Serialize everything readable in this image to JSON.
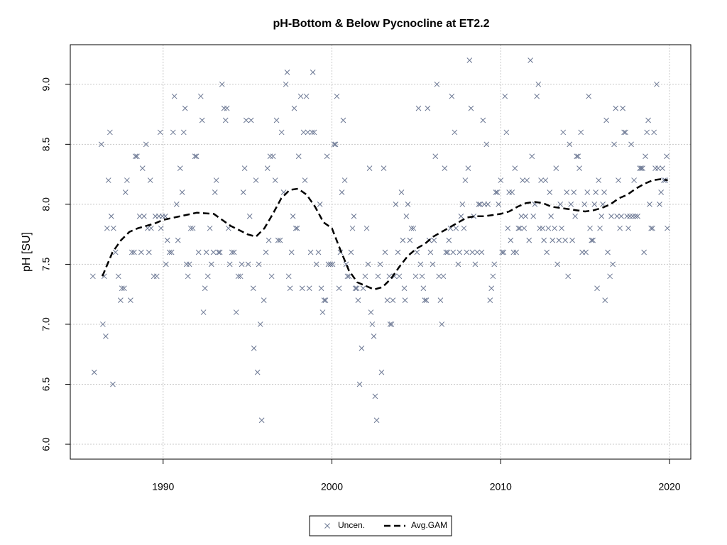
{
  "chart_data": {
    "type": "scatter",
    "title": "pH-Bottom & Below Pycnocline at ET2.2",
    "ylabel": "pH [SU]",
    "xlim": [
      1984.5,
      2021.26
    ],
    "ylim": [
      5.876,
      9.33
    ],
    "xticks": [
      1990,
      2000,
      2010,
      2020
    ],
    "yticks": [
      {
        "value": 6,
        "label": "6.0"
      },
      6.5,
      {
        "value": 7,
        "label": "7.0"
      },
      7.5,
      {
        "value": 8,
        "label": "8.0"
      },
      8.5,
      {
        "value": 9,
        "label": "9.0"
      }
    ],
    "grid": true,
    "legend": "bottom",
    "series": [
      {
        "name": "Uncen.",
        "type": "scatter",
        "color": "#6b7793",
        "x": [
          1985.84,
          1985.92,
          1986.34,
          1986.43,
          1986.51,
          1986.6,
          1986.68,
          1986.76,
          1986.85,
          1986.93,
          1987.02,
          1987.06,
          1987.18,
          1987.35,
          1987.48,
          1987.56,
          1987.69,
          1987.77,
          1987.86,
          1988.07,
          1988.15,
          1988.28,
          1988.36,
          1988.45,
          1988.61,
          1988.7,
          1988.78,
          1988.87,
          1988.99,
          1989.08,
          1989.16,
          1989.24,
          1989.29,
          1989.45,
          1989.54,
          1989.62,
          1989.75,
          1989.83,
          1989.87,
          1989.96,
          1990.13,
          1990.17,
          1990.25,
          1990.38,
          1990.5,
          1990.59,
          1990.67,
          1990.8,
          1990.88,
          1991.01,
          1991.13,
          1991.22,
          1991.3,
          1991.39,
          1991.47,
          1991.55,
          1991.64,
          1991.76,
          1991.89,
          1991.97,
          1992.1,
          1992.23,
          1992.31,
          1992.39,
          1992.48,
          1992.56,
          1992.65,
          1992.77,
          1992.86,
          1992.98,
          1993.07,
          1993.15,
          1993.28,
          1993.36,
          1993.49,
          1993.61,
          1993.7,
          1993.78,
          1993.87,
          1993.95,
          1994.08,
          1994.2,
          1994.33,
          1994.45,
          1994.58,
          1994.66,
          1994.75,
          1994.83,
          1994.92,
          1995.04,
          1995.13,
          1995.21,
          1995.34,
          1995.38,
          1995.5,
          1995.59,
          1995.67,
          1995.76,
          1995.84,
          1995.97,
          1996.09,
          1996.18,
          1996.26,
          1996.34,
          1996.43,
          1996.51,
          1996.64,
          1996.72,
          1996.81,
          1996.93,
          1997.02,
          1997.14,
          1997.27,
          1997.35,
          1997.44,
          1997.52,
          1997.61,
          1997.69,
          1997.77,
          1997.86,
          1997.94,
          1998.03,
          1998.15,
          1998.24,
          1998.32,
          1998.4,
          1998.49,
          1998.57,
          1998.66,
          1998.74,
          1998.82,
          1998.87,
          1998.95,
          1999.08,
          1999.2,
          1999.29,
          1999.37,
          1999.45,
          1999.54,
          1999.62,
          1999.71,
          1999.79,
          1999.92,
          2000.04,
          2000.13,
          2000.21,
          2000.29,
          2000.42,
          2000.5,
          2000.59,
          2000.67,
          2000.76,
          2000.84,
          2000.92,
          2001.01,
          2001.13,
          2001.22,
          2001.3,
          2001.39,
          2001.47,
          2001.55,
          2001.64,
          2001.76,
          2001.85,
          2001.97,
          2002.06,
          2002.14,
          2002.23,
          2002.31,
          2002.39,
          2002.48,
          2002.56,
          2002.65,
          2002.73,
          2002.86,
          2002.94,
          2003.07,
          2003.15,
          2003.28,
          2003.4,
          2003.45,
          2003.53,
          2003.61,
          2003.7,
          2003.78,
          2003.91,
          2003.99,
          2004.12,
          2004.2,
          2004.29,
          2004.33,
          2004.41,
          2004.5,
          2004.62,
          2004.71,
          2004.83,
          2004.96,
          2005.04,
          2005.13,
          2005.25,
          2005.34,
          2005.42,
          2005.5,
          2005.59,
          2005.67,
          2005.76,
          2005.84,
          2005.97,
          2006.05,
          2006.13,
          2006.22,
          2006.34,
          2006.43,
          2006.51,
          2006.6,
          2006.68,
          2006.76,
          2006.85,
          2006.93,
          2007.02,
          2007.1,
          2007.18,
          2007.27,
          2007.35,
          2007.48,
          2007.56,
          2007.65,
          2007.73,
          2007.82,
          2007.9,
          2007.98,
          2008.07,
          2008.15,
          2008.24,
          2008.32,
          2008.4,
          2008.49,
          2008.61,
          2008.7,
          2008.78,
          2008.87,
          2008.95,
          2009.03,
          2009.16,
          2009.24,
          2009.37,
          2009.45,
          2009.54,
          2009.62,
          2009.71,
          2009.79,
          2009.87,
          2010.0,
          2010.08,
          2010.17,
          2010.25,
          2010.34,
          2010.42,
          2010.5,
          2010.59,
          2010.67,
          2010.76,
          2010.84,
          2010.92,
          2011.05,
          2011.13,
          2011.22,
          2011.3,
          2011.39,
          2011.47,
          2011.55,
          2011.68,
          2011.76,
          2011.85,
          2011.93,
          2012.02,
          2012.14,
          2012.23,
          2012.31,
          2012.39,
          2012.48,
          2012.56,
          2012.65,
          2012.73,
          2012.82,
          2012.9,
          2012.98,
          2013.07,
          2013.19,
          2013.28,
          2013.36,
          2013.45,
          2013.53,
          2013.61,
          2013.7,
          2013.82,
          2013.91,
          2013.99,
          2014.08,
          2014.16,
          2014.24,
          2014.33,
          2014.41,
          2014.5,
          2014.58,
          2014.66,
          2014.75,
          2014.83,
          2014.96,
          2015.04,
          2015.13,
          2015.21,
          2015.29,
          2015.38,
          2015.46,
          2015.55,
          2015.63,
          2015.71,
          2015.8,
          2015.88,
          2015.97,
          2016.05,
          2016.13,
          2016.18,
          2016.26,
          2016.34,
          2016.47,
          2016.55,
          2016.64,
          2016.72,
          2016.81,
          2016.89,
          2016.97,
          2017.06,
          2017.14,
          2017.23,
          2017.31,
          2017.39,
          2017.48,
          2017.56,
          2017.65,
          2017.73,
          2017.82,
          2017.9,
          2017.98,
          2018.11,
          2018.24,
          2018.32,
          2018.4,
          2018.49,
          2018.57,
          2018.66,
          2018.74,
          2018.82,
          2018.91,
          2018.99,
          2019.08,
          2019.16,
          2019.24,
          2019.33,
          2019.41,
          2019.5,
          2019.58,
          2019.66,
          2019.75,
          2019.83,
          2019.87
        ],
        "values": [
          7.4,
          6.6,
          8.5,
          7.0,
          7.4,
          6.9,
          7.8,
          8.2,
          8.6,
          7.9,
          6.5,
          7.8,
          7.6,
          7.4,
          7.2,
          7.3,
          7.3,
          8.1,
          8.2,
          7.2,
          7.6,
          7.6,
          8.4,
          8.4,
          7.9,
          7.6,
          8.3,
          7.9,
          8.5,
          7.8,
          7.6,
          8.2,
          7.8,
          7.4,
          7.9,
          7.4,
          7.9,
          8.6,
          7.8,
          7.9,
          7.9,
          7.5,
          7.7,
          7.6,
          7.6,
          8.6,
          8.9,
          8.0,
          7.7,
          8.3,
          8.1,
          8.6,
          8.8,
          7.5,
          7.4,
          7.5,
          7.8,
          7.8,
          8.4,
          8.4,
          7.6,
          8.9,
          8.7,
          7.1,
          7.3,
          7.6,
          7.4,
          7.8,
          7.5,
          7.6,
          8.1,
          8.2,
          7.6,
          7.6,
          9.0,
          8.8,
          8.7,
          8.8,
          7.8,
          7.5,
          7.6,
          7.6,
          7.1,
          7.4,
          7.4,
          7.5,
          8.1,
          8.3,
          8.7,
          7.5,
          7.9,
          8.7,
          7.3,
          6.8,
          8.2,
          6.6,
          7.5,
          7.0,
          6.2,
          7.2,
          7.6,
          8.3,
          7.7,
          8.4,
          7.4,
          8.4,
          8.2,
          8.7,
          7.7,
          7.7,
          8.6,
          8.1,
          9.0,
          9.1,
          7.4,
          7.3,
          7.6,
          7.9,
          8.8,
          7.8,
          7.8,
          8.4,
          8.9,
          7.3,
          8.6,
          8.2,
          8.9,
          8.6,
          7.3,
          7.6,
          8.6,
          9.1,
          8.6,
          7.5,
          7.6,
          8.0,
          7.3,
          7.1,
          7.2,
          7.2,
          8.4,
          7.5,
          7.5,
          7.5,
          8.5,
          8.5,
          8.9,
          7.3,
          7.6,
          8.1,
          8.7,
          8.2,
          7.5,
          7.4,
          7.4,
          7.6,
          7.8,
          7.9,
          7.3,
          7.3,
          7.2,
          6.5,
          6.8,
          7.3,
          7.4,
          7.8,
          7.5,
          8.3,
          7.1,
          7.0,
          6.9,
          6.4,
          6.2,
          7.4,
          7.5,
          6.6,
          8.3,
          7.6,
          7.2,
          7.4,
          7.0,
          7.0,
          7.2,
          7.4,
          8.0,
          7.6,
          7.4,
          8.1,
          7.7,
          7.3,
          7.2,
          7.9,
          8.0,
          7.7,
          7.8,
          7.8,
          7.4,
          7.6,
          8.8,
          7.5,
          7.4,
          7.3,
          7.2,
          7.2,
          8.8,
          7.7,
          7.6,
          7.5,
          7.7,
          8.4,
          9.0,
          7.4,
          7.2,
          7.0,
          7.4,
          8.3,
          7.6,
          7.6,
          7.7,
          7.8,
          8.9,
          7.6,
          8.6,
          7.8,
          7.5,
          7.6,
          7.9,
          8.0,
          7.8,
          8.2,
          7.6,
          8.3,
          9.2,
          8.8,
          7.6,
          7.9,
          7.5,
          7.6,
          8.0,
          8.0,
          7.6,
          8.7,
          8.0,
          8.5,
          8.0,
          7.2,
          7.3,
          7.4,
          7.5,
          8.1,
          8.1,
          8.0,
          8.2,
          7.6,
          7.6,
          8.9,
          8.6,
          7.8,
          8.1,
          7.7,
          8.1,
          7.6,
          8.3,
          7.6,
          7.8,
          7.8,
          7.9,
          8.2,
          7.8,
          7.9,
          8.2,
          7.7,
          9.2,
          8.4,
          7.9,
          8.0,
          8.9,
          9.0,
          7.8,
          8.2,
          7.8,
          7.7,
          8.2,
          7.6,
          7.8,
          8.1,
          7.9,
          7.7,
          7.8,
          8.3,
          7.5,
          7.7,
          8.0,
          7.8,
          8.6,
          7.7,
          8.1,
          7.4,
          8.5,
          8.0,
          7.7,
          8.1,
          7.9,
          8.4,
          8.4,
          8.3,
          8.6,
          7.6,
          8.0,
          7.6,
          8.1,
          8.9,
          7.8,
          7.7,
          7.7,
          8.0,
          8.1,
          7.3,
          8.2,
          7.8,
          7.9,
          8.0,
          8.1,
          7.2,
          8.7,
          7.6,
          7.4,
          7.9,
          7.5,
          8.5,
          8.8,
          7.9,
          8.2,
          7.8,
          7.9,
          8.8,
          8.6,
          8.6,
          7.9,
          7.8,
          7.9,
          8.5,
          7.9,
          8.2,
          7.9,
          7.9,
          8.3,
          8.3,
          8.3,
          7.6,
          8.4,
          8.6,
          8.7,
          8.0,
          7.8,
          7.8,
          8.6,
          8.3,
          9.0,
          8.3,
          8.0,
          8.1,
          8.3,
          8.2,
          8.2,
          8.4,
          7.8
        ]
      },
      {
        "name": "Avg.GAM",
        "type": "line",
        "color": "#000000",
        "dashed": true,
        "x": [
          1986.4,
          1987.0,
          1987.5,
          1988.0,
          1988.5,
          1989.0,
          1989.5,
          1990.0,
          1991.0,
          1992.0,
          1993.0,
          1994.0,
          1995.0,
          1995.5,
          1996.0,
          1996.5,
          1997.0,
          1997.5,
          1998.0,
          1998.5,
          1999.0,
          1999.5,
          2000.0,
          2000.5,
          2001.0,
          2001.5,
          2002.0,
          2002.5,
          2003.0,
          2003.5,
          2004.0,
          2004.5,
          2005.0,
          2005.5,
          2006.0,
          2006.5,
          2007.0,
          2007.5,
          2008.0,
          2008.5,
          2009.0,
          2009.5,
          2010.0,
          2010.5,
          2011.0,
          2011.5,
          2012.0,
          2012.5,
          2013.0,
          2013.5,
          2014.0,
          2014.5,
          2015.0,
          2015.5,
          2016.0,
          2016.5,
          2017.0,
          2017.5,
          2018.0,
          2018.5,
          2019.0,
          2019.5,
          2019.9
        ],
        "values": [
          7.4,
          7.6,
          7.7,
          7.77,
          7.8,
          7.82,
          7.84,
          7.87,
          7.9,
          7.93,
          7.92,
          7.82,
          7.75,
          7.73,
          7.8,
          7.92,
          8.05,
          8.12,
          8.13,
          8.08,
          7.98,
          7.85,
          7.8,
          7.62,
          7.45,
          7.35,
          7.32,
          7.29,
          7.31,
          7.38,
          7.48,
          7.57,
          7.63,
          7.67,
          7.73,
          7.77,
          7.81,
          7.85,
          7.89,
          7.9,
          7.9,
          7.91,
          7.92,
          7.94,
          7.98,
          8.01,
          8.02,
          8.01,
          7.98,
          7.97,
          7.96,
          7.95,
          7.94,
          7.95,
          7.97,
          8.0,
          8.05,
          8.08,
          8.13,
          8.17,
          8.2,
          8.21,
          8.2
        ]
      }
    ]
  }
}
